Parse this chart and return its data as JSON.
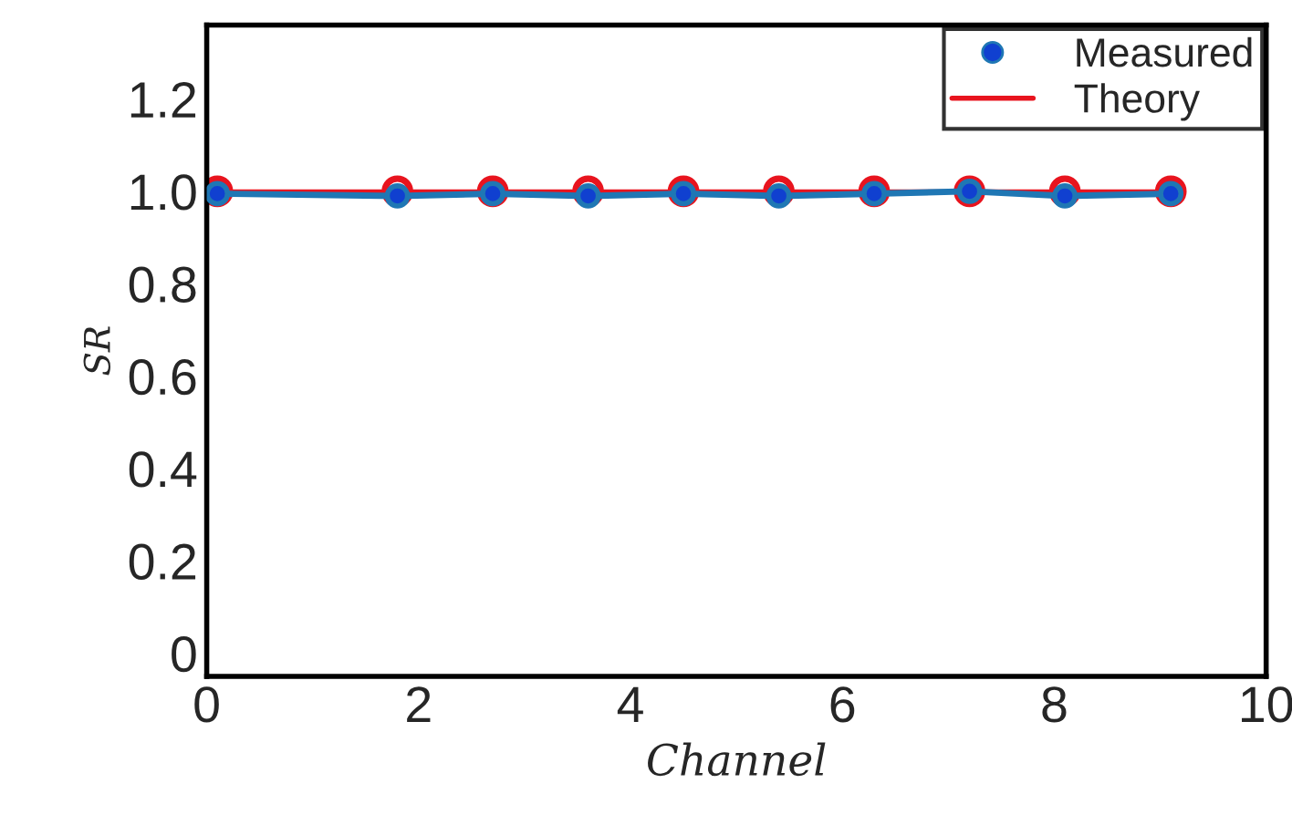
{
  "chart_data": {
    "type": "line",
    "xlabel": "Channel",
    "ylabel": "SR",
    "x": [
      0.1,
      1.8,
      2.7,
      3.6,
      4.5,
      5.4,
      6.3,
      7.2,
      8.1,
      9.1
    ],
    "series": [
      {
        "name": "Measured",
        "color": "#1f77b4",
        "marker": "circle",
        "values": [
          0.995,
          0.99,
          0.995,
          0.99,
          0.995,
          0.99,
          0.995,
          1.0,
          0.99,
          0.995
        ]
      },
      {
        "name": "Theory",
        "color": "#e8141e",
        "marker": "circle",
        "values": [
          1.0,
          1.0,
          1.0,
          1.0,
          1.0,
          1.0,
          1.0,
          1.0,
          1.0,
          1.0
        ]
      }
    ],
    "xlim": [
      0,
      10
    ],
    "xticks": [
      0,
      2,
      4,
      6,
      8,
      10
    ],
    "ylim": [
      -0.05,
      1.36
    ],
    "yticks": [
      0,
      0.2,
      0.4,
      0.6,
      0.8,
      {
        "value": 1,
        "label": "1.0"
      },
      1.2
    ],
    "legend": "top right",
    "grid": false
  }
}
